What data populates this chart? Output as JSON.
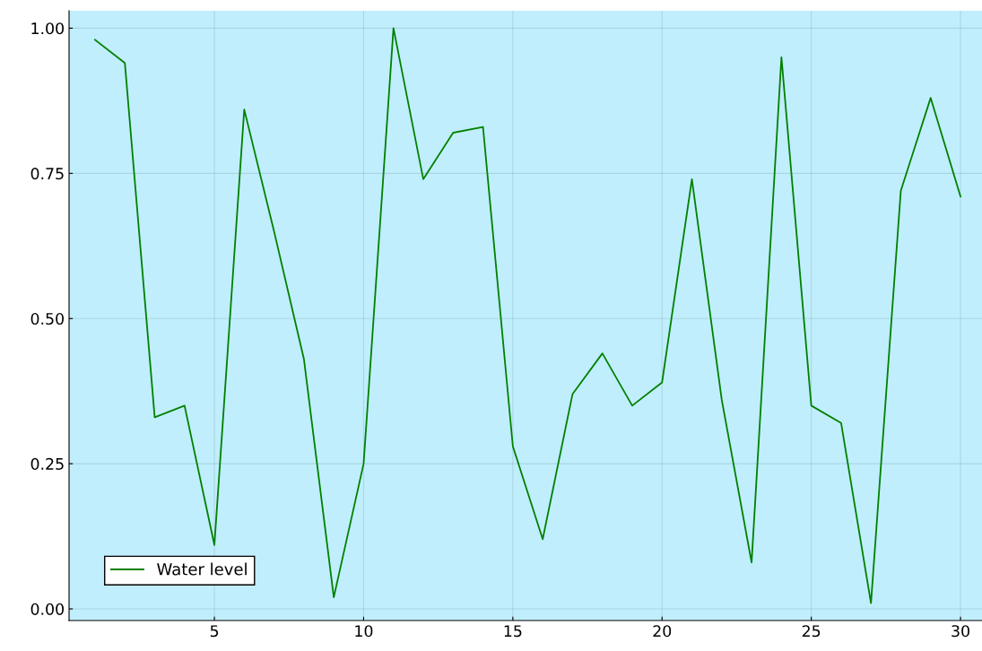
{
  "chart_data": {
    "type": "line",
    "x": [
      1,
      2,
      3,
      4,
      5,
      6,
      7,
      8,
      9,
      10,
      11,
      12,
      13,
      14,
      15,
      16,
      17,
      18,
      19,
      20,
      21,
      22,
      23,
      24,
      25,
      26,
      27,
      28,
      29,
      30
    ],
    "series": [
      {
        "name": "Water level",
        "color": "#008000",
        "values": [
          0.98,
          0.94,
          0.33,
          0.35,
          0.11,
          0.86,
          0.65,
          0.43,
          0.02,
          0.25,
          1.0,
          0.74,
          0.82,
          0.83,
          0.28,
          0.12,
          0.37,
          0.44,
          0.35,
          0.39,
          0.74,
          0.36,
          0.08,
          0.95,
          0.35,
          0.32,
          0.01,
          0.72,
          0.88,
          0.71
        ]
      }
    ],
    "xlim": [
      0.13,
      30.72
    ],
    "xticks": [
      5,
      10,
      15,
      20,
      25,
      30
    ],
    "ylim": [
      -0.02,
      1.03
    ],
    "yticks": [
      {
        "value": 0,
        "label": "0.00"
      },
      {
        "value": 0.25,
        "label": "0.25"
      },
      {
        "value": 0.5,
        "label": "0.50"
      },
      {
        "value": 0.75,
        "label": "0.75"
      },
      {
        "value": 1,
        "label": "1.00"
      }
    ],
    "grid": true,
    "legend": "bottom left",
    "marker": "none",
    "line_style": "solid"
  }
}
